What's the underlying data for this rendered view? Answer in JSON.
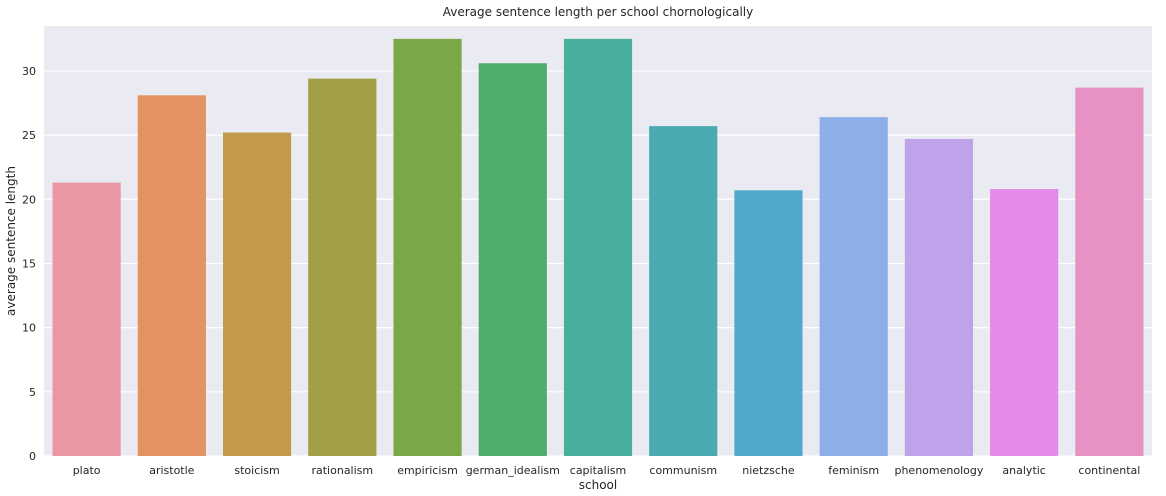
{
  "chart_data": {
    "type": "bar",
    "title": "Average sentence length per school chornologically",
    "xlabel": "school",
    "ylabel": "average sentence length",
    "ylim": [
      0,
      33.5
    ],
    "yticks": [
      0,
      5,
      10,
      15,
      20,
      25,
      30
    ],
    "grid": true,
    "categories": [
      "plato",
      "aristotle",
      "stoicism",
      "rationalism",
      "empiricism",
      "german_idealism",
      "capitalism",
      "communism",
      "nietzsche",
      "feminism",
      "phenomenology",
      "analytic",
      "continental"
    ],
    "values": [
      21.3,
      28.1,
      25.2,
      29.4,
      32.5,
      30.6,
      32.5,
      25.7,
      20.7,
      26.4,
      24.7,
      20.8,
      28.7
    ],
    "colors": [
      "#ea96a3",
      "#e39362",
      "#c39a4b",
      "#a09f45",
      "#7aa849",
      "#4cad6d",
      "#4aae9d",
      "#4aaab1",
      "#52a8ca",
      "#8daee9",
      "#bea3ea",
      "#e58ae8",
      "#e891c4"
    ],
    "background": "#eaeaf2",
    "gridcolor": "#ffffff"
  }
}
